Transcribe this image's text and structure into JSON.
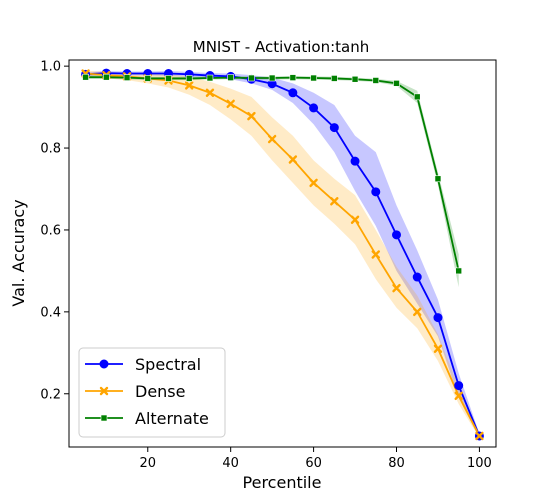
{
  "chart_data": {
    "type": "line",
    "title": "MNIST - Activation:tanh",
    "xlabel": "Percentile",
    "ylabel": "Val. Accuracy",
    "xlim": [
      1,
      104
    ],
    "ylim": [
      0.07,
      1.015
    ],
    "xticks": [
      20,
      40,
      60,
      80,
      100
    ],
    "yticks": [
      0.2,
      0.4,
      0.6,
      0.8,
      1.0
    ],
    "ytick_labels": [
      "0.2",
      "0.4",
      "0.6",
      "0.8",
      "1.0"
    ],
    "grid": false,
    "legend_position": "bottom-left",
    "series": [
      {
        "name": "Spectral",
        "color": "#0000ff",
        "marker": "circle",
        "x": [
          5,
          10,
          15,
          20,
          25,
          30,
          35,
          40,
          45,
          50,
          55,
          60,
          65,
          70,
          75,
          80,
          85,
          90,
          95,
          100
        ],
        "values": [
          0.98,
          0.983,
          0.982,
          0.982,
          0.982,
          0.98,
          0.977,
          0.975,
          0.968,
          0.957,
          0.935,
          0.898,
          0.85,
          0.768,
          0.693,
          0.588,
          0.485,
          0.386,
          0.22,
          0.097
        ],
        "lower": [
          0.975,
          0.978,
          0.977,
          0.977,
          0.976,
          0.974,
          0.971,
          0.968,
          0.958,
          0.942,
          0.91,
          0.858,
          0.79,
          0.695,
          0.61,
          0.5,
          0.42,
          0.34,
          0.19,
          0.092
        ],
        "upper": [
          0.985,
          0.988,
          0.987,
          0.987,
          0.988,
          0.986,
          0.983,
          0.982,
          0.978,
          0.972,
          0.958,
          0.935,
          0.905,
          0.83,
          0.79,
          0.66,
          0.55,
          0.43,
          0.25,
          0.102
        ]
      },
      {
        "name": "Dense",
        "color": "#ffa500",
        "marker": "x",
        "x": [
          5,
          10,
          15,
          20,
          25,
          30,
          35,
          40,
          45,
          50,
          55,
          60,
          65,
          70,
          75,
          80,
          85,
          90,
          95,
          100
        ],
        "values": [
          0.982,
          0.978,
          0.975,
          0.97,
          0.965,
          0.953,
          0.935,
          0.908,
          0.878,
          0.822,
          0.772,
          0.715,
          0.67,
          0.625,
          0.54,
          0.458,
          0.4,
          0.31,
          0.195,
          0.097
        ],
        "lower": [
          0.975,
          0.97,
          0.966,
          0.958,
          0.948,
          0.93,
          0.905,
          0.87,
          0.83,
          0.77,
          0.715,
          0.66,
          0.615,
          0.565,
          0.48,
          0.41,
          0.36,
          0.28,
          0.175,
          0.092
        ],
        "upper": [
          0.989,
          0.986,
          0.984,
          0.982,
          0.98,
          0.975,
          0.962,
          0.945,
          0.925,
          0.875,
          0.83,
          0.77,
          0.725,
          0.685,
          0.6,
          0.51,
          0.44,
          0.345,
          0.215,
          0.102
        ]
      },
      {
        "name": "Alternate",
        "color": "#008000",
        "marker": "square",
        "x": [
          5,
          10,
          15,
          20,
          25,
          30,
          35,
          40,
          45,
          50,
          55,
          60,
          65,
          70,
          75,
          80,
          85,
          90,
          95
        ],
        "values": [
          0.973,
          0.973,
          0.972,
          0.97,
          0.97,
          0.97,
          0.971,
          0.972,
          0.971,
          0.971,
          0.972,
          0.971,
          0.97,
          0.968,
          0.965,
          0.958,
          0.925,
          0.725,
          0.5
        ],
        "lower": [
          0.969,
          0.969,
          0.968,
          0.966,
          0.966,
          0.966,
          0.967,
          0.968,
          0.967,
          0.967,
          0.968,
          0.967,
          0.966,
          0.964,
          0.961,
          0.952,
          0.91,
          0.71,
          0.46
        ],
        "upper": [
          0.977,
          0.977,
          0.976,
          0.974,
          0.974,
          0.974,
          0.975,
          0.976,
          0.975,
          0.975,
          0.976,
          0.975,
          0.974,
          0.972,
          0.969,
          0.964,
          0.94,
          0.74,
          0.54
        ]
      }
    ]
  }
}
